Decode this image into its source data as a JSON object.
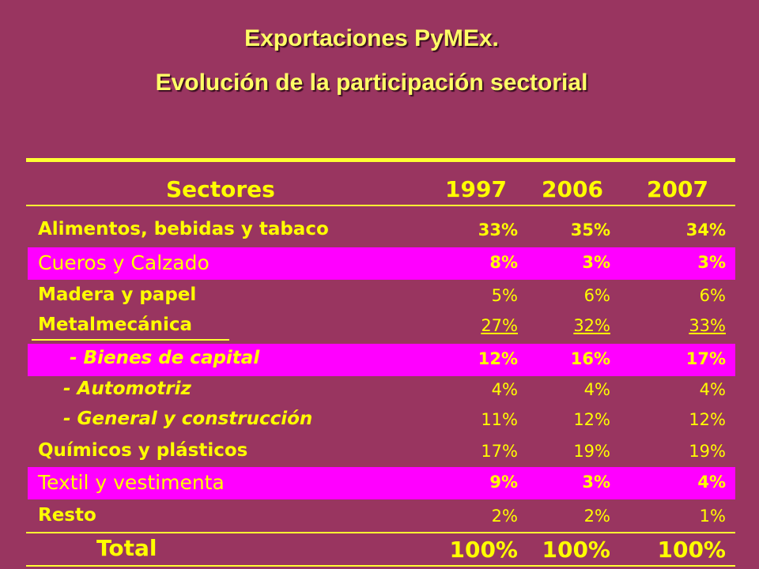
{
  "header": {
    "title": "Exportaciones PyMEx.",
    "subtitle": "Evolución de la participación sectorial"
  },
  "table": {
    "columns": [
      "Sectores",
      "1997",
      "2006",
      "2007"
    ],
    "rows": [
      [
        "Alimentos, bebidas y tabaco",
        "33%",
        "35%",
        "34%"
      ],
      [
        "Cueros y Calzado",
        "8%",
        "3%",
        "3%"
      ],
      [
        "Madera y papel",
        "5%",
        "6%",
        "6%"
      ],
      [
        "Metalmecánica",
        "27%",
        "32%",
        "33%"
      ],
      [
        "- Bienes de capital",
        "12%",
        "16%",
        "17%"
      ],
      [
        "- Automotriz",
        "4%",
        "4%",
        "4%"
      ],
      [
        "- General y construcción",
        "11%",
        "12%",
        "12%"
      ],
      [
        "Químicos y plásticos",
        "17%",
        "19%",
        "19%"
      ],
      [
        "Textil y vestimenta",
        "9%",
        "3%",
        "4%"
      ],
      [
        "Resto",
        "2%",
        "2%",
        "1%"
      ],
      [
        "Total",
        "100%",
        "100%",
        "100%"
      ]
    ]
  }
}
